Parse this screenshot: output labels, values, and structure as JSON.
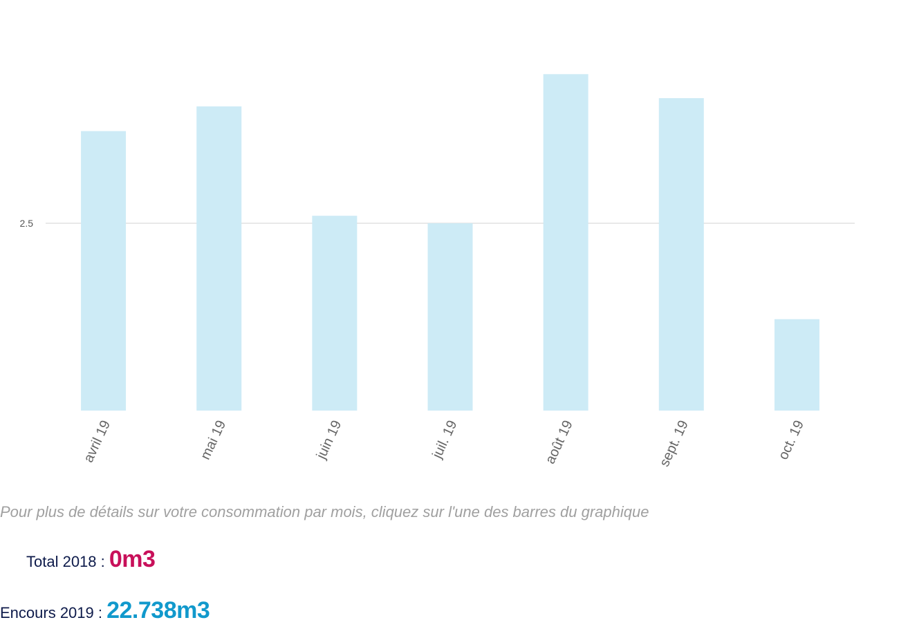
{
  "chart_data": {
    "type": "bar",
    "categories": [
      "avril 19",
      "mai 19",
      "juin 19",
      "juil. 19",
      "août 19",
      "sept. 19",
      "oct. 19"
    ],
    "values": [
      3.73,
      4.06,
      2.6,
      2.5,
      4.49,
      4.17,
      1.22
    ],
    "ylim": [
      0,
      5
    ],
    "yticks": [
      2.5
    ],
    "ytick_labels": [
      "2.5"
    ],
    "grid": true,
    "bar_color": "#cdebf6",
    "grid_color": "#e0e0e0"
  },
  "hint": "Pour plus de détails sur votre consommation par mois, cliquez sur l'une des barres du graphique",
  "totals": {
    "label_2018": "Total 2018 : ",
    "value_2018": "0m3",
    "label_2019": "Encours 2019 : ",
    "value_2019": "22.738m3",
    "color_2018": "#c8105a",
    "color_2019": "#1199cc"
  }
}
